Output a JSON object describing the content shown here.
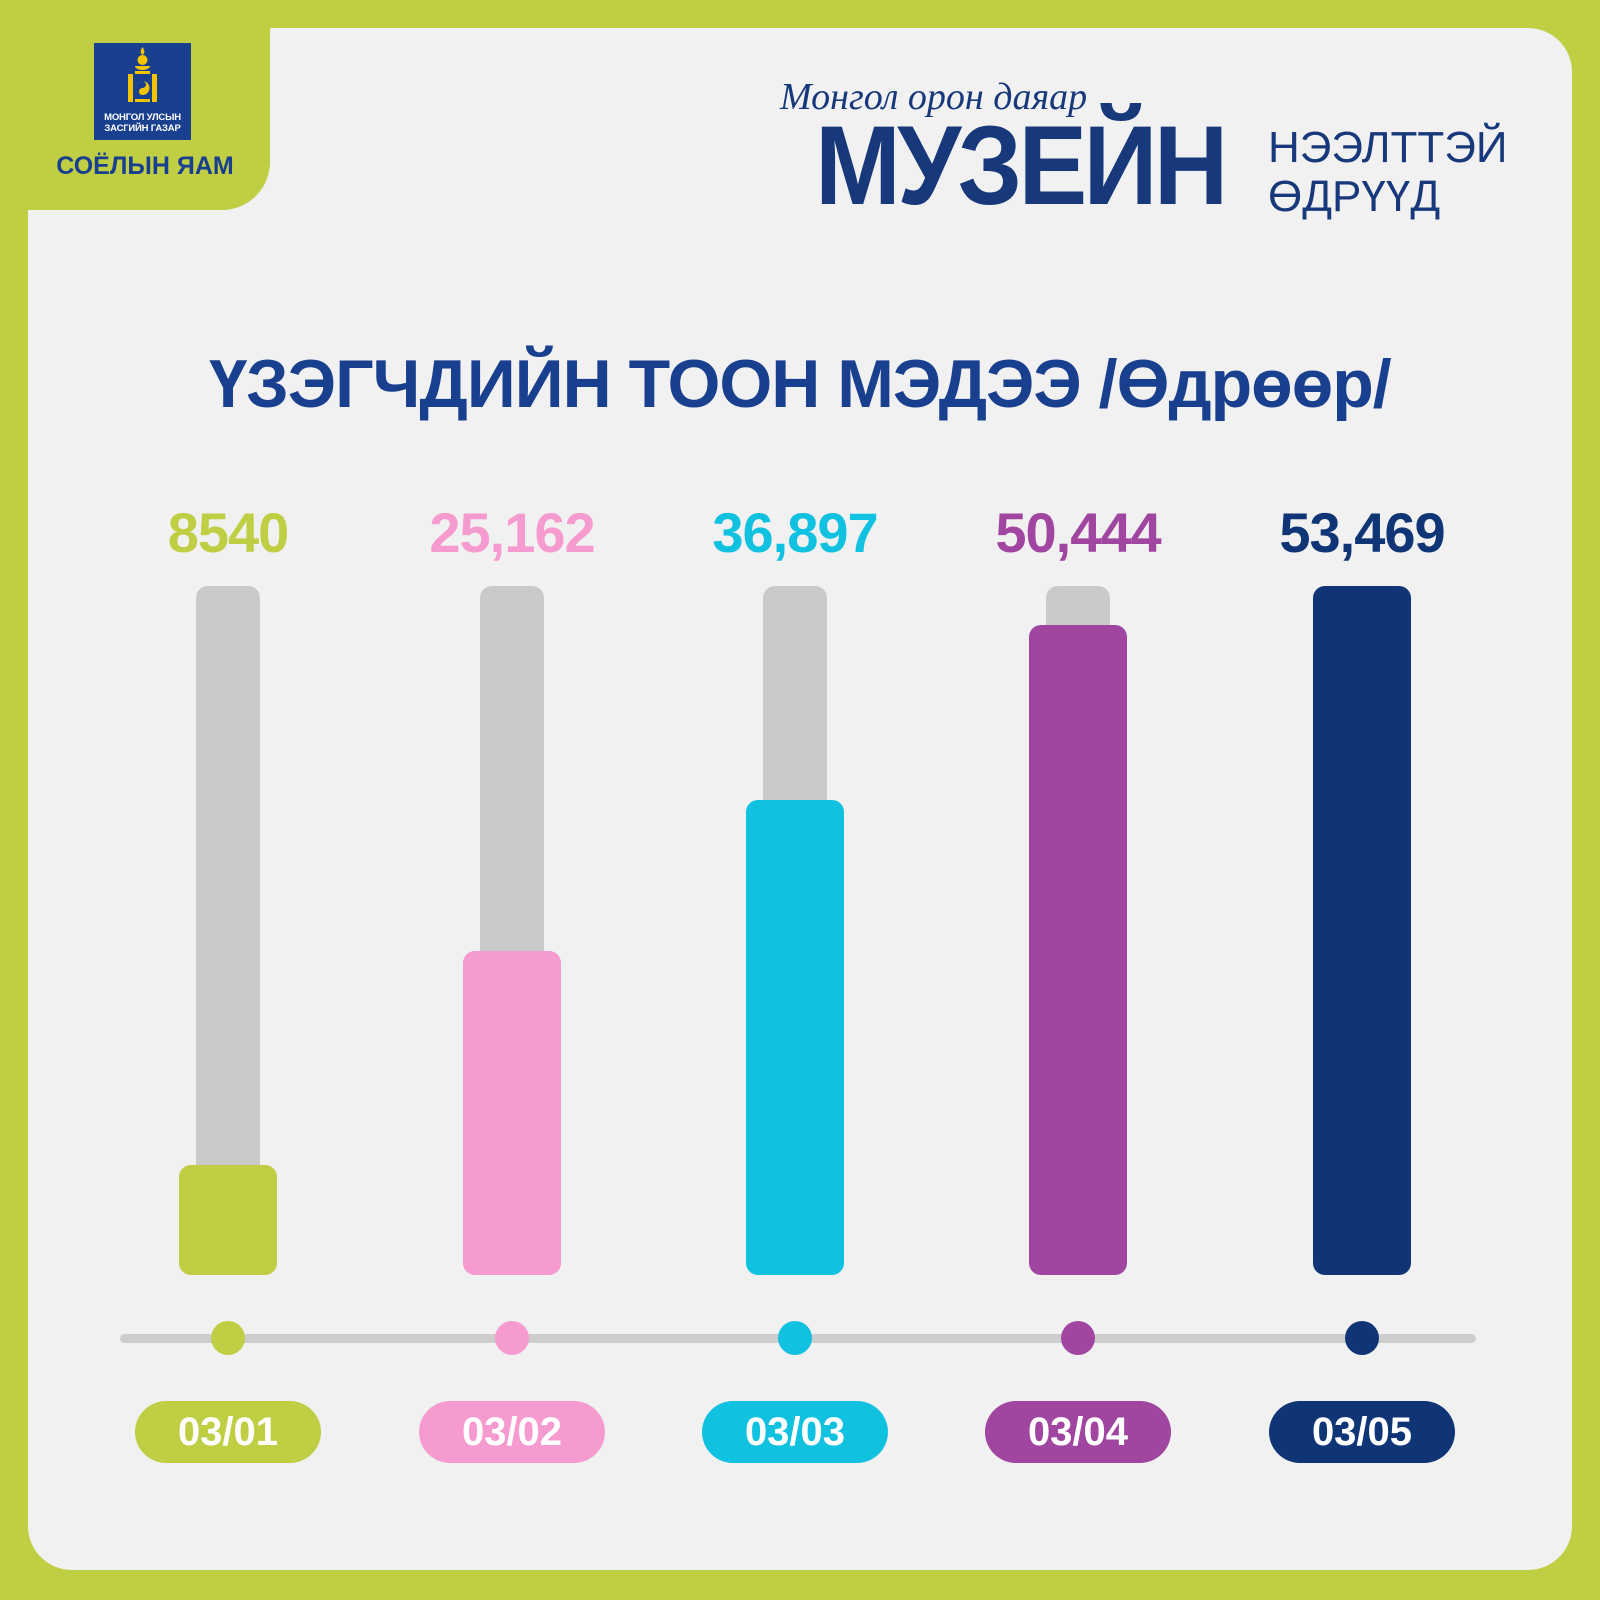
{
  "ministry": {
    "emblem_line1": "МОНГОЛ УЛСЫН",
    "emblem_line2": "ЗАСГИЙН ГАЗАР",
    "name": "СОЁЛЫН ЯАМ"
  },
  "brand": {
    "script": "Монгол орон даяар",
    "big": "МУЗЕЙН",
    "line1": "НЭЭЛТТЭЙ",
    "line2": "ӨДРҮҮД"
  },
  "colors": {
    "frame": "#c0ce44",
    "navy": "#193f8f",
    "track": "#c9c9c9"
  },
  "chart_data": {
    "type": "bar",
    "title": "ҮЗЭГЧДИЙН ТООН МЭДЭЭ /Өдрөөр/",
    "categories": [
      "03/01",
      "03/02",
      "03/03",
      "03/04",
      "03/05"
    ],
    "values": [
      8540,
      25162,
      36897,
      50444,
      53469
    ],
    "value_labels": [
      "8540",
      "25,162",
      "36,897",
      "50,444",
      "53,469"
    ],
    "colors": [
      "#c0ce44",
      "#f59bcf",
      "#11c1e0",
      "#a045a0",
      "#0f3576"
    ],
    "xlabel": "",
    "ylabel": "",
    "ylim": [
      0,
      53469
    ],
    "grid": false,
    "legend": "none"
  }
}
